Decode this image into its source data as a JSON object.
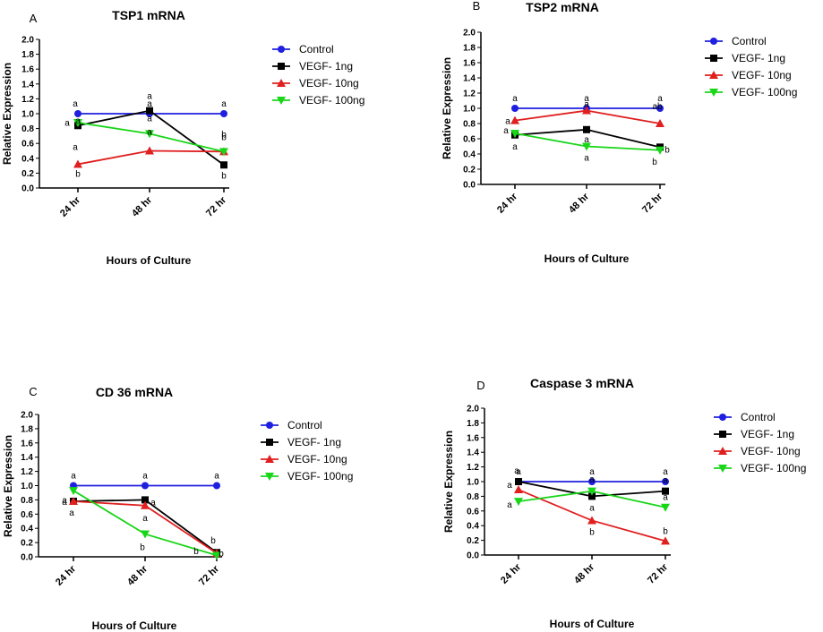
{
  "series_colors": {
    "control": "#1f1fe0",
    "vegf_1ng": "#000000",
    "vegf_10ng": "#e01f1f",
    "vegf_100ng": "#19d619"
  },
  "chart_data": [
    {
      "type": "line",
      "panel_letter": "A",
      "title": "TSP1 mRNA",
      "xlabel": "Hours of Culture",
      "ylabel": "Relative Expression",
      "categories": [
        "24 hr",
        "48 hr",
        "72 hr"
      ],
      "ylim": [
        0,
        2
      ],
      "yticks": [
        "0.0",
        "0.2",
        "0.4",
        "0.6",
        "0.8",
        "1.0",
        "1.2",
        "1.4",
        "1.6",
        "1.8",
        "2.0"
      ],
      "legend_position": "right",
      "series": [
        {
          "name": "Control",
          "marker": "circle",
          "values": [
            1.0,
            1.0,
            1.0
          ],
          "labels": [
            [
              "a"
            ],
            [
              "a"
            ],
            [
              "a"
            ]
          ]
        },
        {
          "name": "VEGF- 1ng",
          "marker": "square",
          "values": [
            0.84,
            1.04,
            0.31
          ],
          "labels": [
            [
              "a",
              "a"
            ],
            [
              "a"
            ],
            [
              "b"
            ]
          ]
        },
        {
          "name": "VEGF- 10ng",
          "marker": "triangle-up",
          "values": [
            0.32,
            0.5,
            0.49
          ],
          "labels": [
            [
              "b"
            ],
            [
              "a"
            ],
            [
              "b"
            ]
          ]
        },
        {
          "name": "VEGF- 100ng",
          "marker": "triangle-down",
          "values": [
            0.88,
            0.73,
            0.49
          ],
          "labels": [
            [
              "a"
            ],
            [
              "a"
            ],
            [
              "b"
            ]
          ]
        }
      ]
    },
    {
      "type": "line",
      "panel_letter": "B",
      "title": "TSP2 mRNA",
      "xlabel": "Hours of Culture",
      "ylabel": "Relative Expression",
      "categories": [
        "24 hr",
        "48 hr",
        "72 hr"
      ],
      "ylim": [
        0,
        2
      ],
      "yticks": [
        "0.0",
        "0.2",
        "0.4",
        "0.6",
        "0.8",
        "1.0",
        "1.2",
        "1.4",
        "1.6",
        "1.8",
        "2.0"
      ],
      "legend_position": "right",
      "series": [
        {
          "name": "Control",
          "marker": "circle",
          "values": [
            1.0,
            1.0,
            1.0
          ],
          "labels": [
            [
              "a"
            ],
            [
              "a"
            ],
            [
              "a"
            ]
          ]
        },
        {
          "name": "VEGF- 1ng",
          "marker": "square",
          "values": [
            0.65,
            0.72,
            0.49
          ],
          "labels": [
            [
              "a"
            ],
            [
              "a"
            ],
            [
              "b"
            ]
          ]
        },
        {
          "name": "VEGF- 10ng",
          "marker": "triangle-up",
          "values": [
            0.84,
            0.97,
            0.8
          ],
          "labels": [
            [
              "a"
            ],
            [
              "a"
            ],
            [
              "ab"
            ]
          ]
        },
        {
          "name": "VEGF- 100ng",
          "marker": "triangle-down",
          "values": [
            0.67,
            0.5,
            0.45
          ],
          "labels": [
            [
              "a"
            ],
            [
              "a"
            ],
            [
              "b"
            ]
          ]
        }
      ]
    },
    {
      "type": "line",
      "panel_letter": "C",
      "title": "CD 36 mRNA",
      "xlabel": "Hours of Culture",
      "ylabel": "Relative Expression",
      "categories": [
        "24 hr",
        "48 hr",
        "72 hr"
      ],
      "ylim": [
        0,
        2
      ],
      "yticks": [
        "0.0",
        "0.2",
        "0.4",
        "0.6",
        "0.8",
        "1.0",
        "1.2",
        "1.4",
        "1.6",
        "1.8",
        "2.0"
      ],
      "legend_position": "right",
      "series": [
        {
          "name": "Control",
          "marker": "circle",
          "values": [
            1.0,
            1.0,
            1.0
          ],
          "labels": [
            [
              "a"
            ],
            [
              "a"
            ],
            [
              "a"
            ]
          ]
        },
        {
          "name": "VEGF- 1ng",
          "marker": "square",
          "values": [
            0.78,
            0.8,
            0.06
          ],
          "labels": [
            [
              "a"
            ],
            [
              "a"
            ],
            [
              "b"
            ]
          ]
        },
        {
          "name": "VEGF- 10ng",
          "marker": "triangle-up",
          "values": [
            0.78,
            0.72,
            0.05
          ],
          "labels": [
            [
              "a"
            ],
            [
              "a"
            ],
            [
              "b"
            ]
          ]
        },
        {
          "name": "VEGF- 100ng",
          "marker": "triangle-down",
          "values": [
            0.93,
            0.32,
            0.02
          ],
          "labels": [
            [
              "a"
            ],
            [
              "b"
            ],
            [
              "b"
            ]
          ]
        }
      ]
    },
    {
      "type": "line",
      "panel_letter": "D",
      "title": "Caspase 3 mRNA",
      "xlabel": "Hours of Culture",
      "ylabel": "Relative Expression",
      "categories": [
        "24 hr",
        "48 hr",
        "72 hr"
      ],
      "ylim": [
        0,
        2
      ],
      "yticks": [
        "0.0",
        "0.2",
        "0.4",
        "0.6",
        "0.8",
        "1.0",
        "1.2",
        "1.4",
        "1.6",
        "1.8",
        "2.0"
      ],
      "legend_position": "right",
      "series": [
        {
          "name": "Control",
          "marker": "circle",
          "values": [
            1.0,
            1.0,
            1.0
          ],
          "labels": [
            [
              "a"
            ],
            [
              "a"
            ],
            [
              "a"
            ]
          ]
        },
        {
          "name": "VEGF- 1ng",
          "marker": "square",
          "values": [
            1.0,
            0.8,
            0.87
          ],
          "labels": [
            [
              "a"
            ],
            [
              "a"
            ],
            [
              "a"
            ]
          ]
        },
        {
          "name": "VEGF- 10ng",
          "marker": "triangle-up",
          "values": [
            0.89,
            0.47,
            0.19
          ],
          "labels": [
            [
              "a"
            ],
            [
              "b"
            ],
            [
              "b"
            ]
          ]
        },
        {
          "name": "VEGF- 100ng",
          "marker": "triangle-down",
          "values": [
            0.73,
            0.87,
            0.65
          ],
          "labels": [
            [
              "a"
            ],
            [
              "a"
            ],
            [
              "a"
            ]
          ]
        }
      ]
    }
  ]
}
